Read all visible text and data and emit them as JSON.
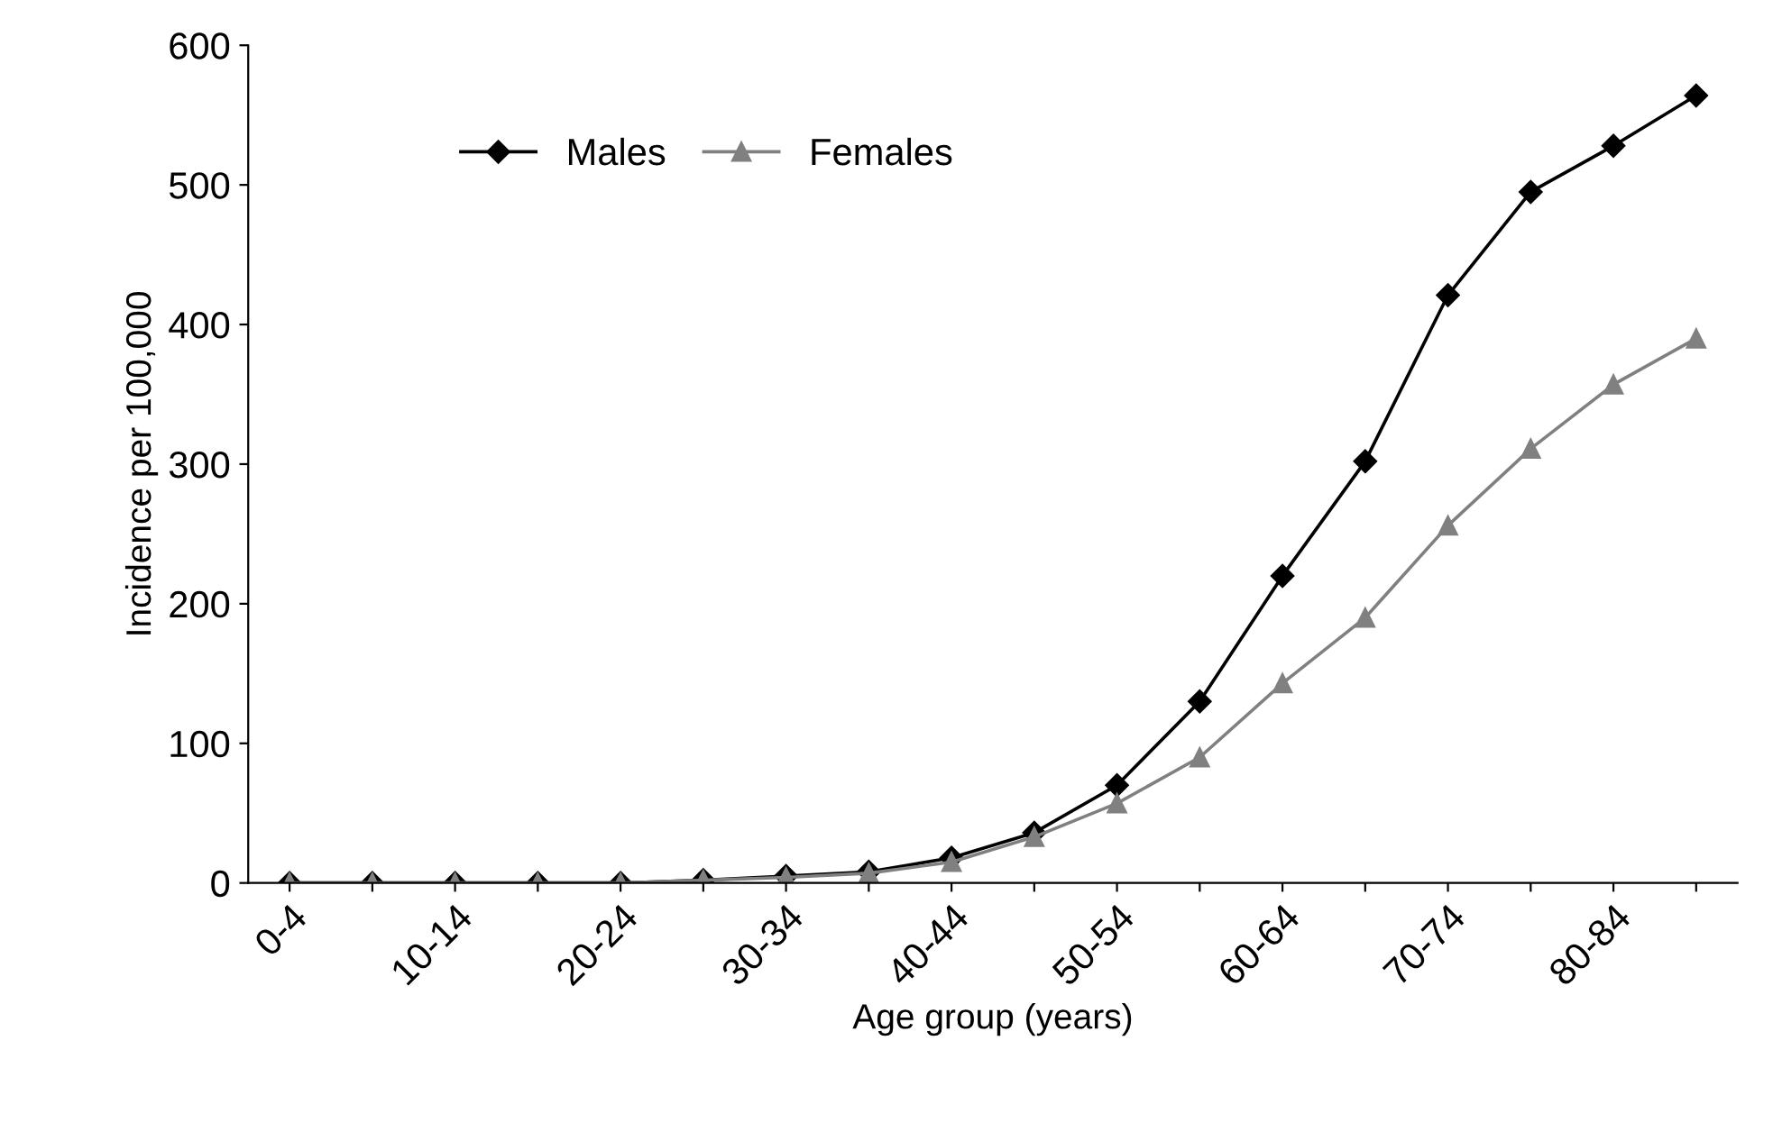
{
  "chart_data": {
    "type": "line",
    "xlabel": "Age group (years)",
    "ylabel": "Incidence per 100,000",
    "categories": [
      "0-4",
      null,
      "10-14",
      null,
      "20-24",
      null,
      "30-34",
      null,
      "40-44",
      null,
      "50-54",
      null,
      "60-64",
      null,
      "70-74",
      null,
      "80-84",
      null
    ],
    "series": [
      {
        "name": "Males",
        "color": "#000000",
        "marker": "diamond",
        "values": [
          0,
          0,
          0,
          0,
          0,
          2,
          5,
          8,
          18,
          36,
          70,
          130,
          220,
          302,
          421,
          495,
          528,
          564
        ]
      },
      {
        "name": "Females",
        "color": "#808080",
        "marker": "triangle",
        "values": [
          0,
          0,
          0,
          0,
          0,
          2,
          4,
          7,
          15,
          33,
          57,
          90,
          143,
          190,
          256,
          311,
          357,
          390
        ]
      }
    ],
    "ylim": [
      0,
      600
    ],
    "yticks": [
      0,
      100,
      200,
      300,
      400,
      500,
      600
    ],
    "grid": false,
    "legend": "top left",
    "line_style": "solid"
  }
}
